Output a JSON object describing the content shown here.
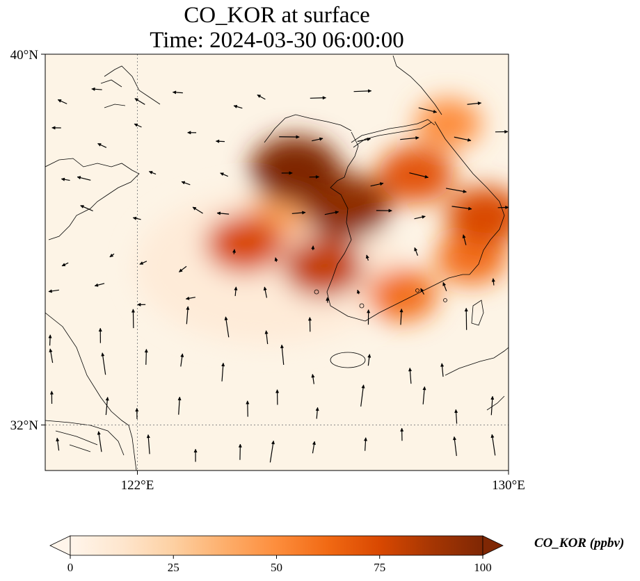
{
  "title_line1": "CO_KOR at surface",
  "title_line2": "Time: 2024-03-30 06:00:00",
  "axes": {
    "lat_labels": [
      "40°N",
      "32°N"
    ],
    "lon_labels": [
      "122°E",
      "130°E"
    ]
  },
  "colorbar": {
    "label": "CO_KOR (ppbv)",
    "ticks": [
      "0",
      "25",
      "50",
      "75",
      "100"
    ],
    "min": 0,
    "max": 100,
    "colors": [
      "#fff5eb",
      "#fee6ce",
      "#fdd0a2",
      "#fdae6b",
      "#fd8d3c",
      "#f16913",
      "#d94801",
      "#a63603",
      "#7f2704"
    ]
  },
  "map_extent": {
    "lon": [
      120,
      130
    ],
    "lat": [
      31,
      40
    ]
  },
  "land_color": "#fdf4e6",
  "plumes": [
    {
      "lon": 125.4,
      "lat": 37.5,
      "value": 100
    },
    {
      "lon": 126.5,
      "lat": 36.7,
      "value": 95
    },
    {
      "lon": 128.0,
      "lat": 37.4,
      "value": 70
    },
    {
      "lon": 129.5,
      "lat": 36.5,
      "value": 75
    },
    {
      "lon": 129.2,
      "lat": 35.6,
      "value": 60
    },
    {
      "lon": 126.0,
      "lat": 35.4,
      "value": 80
    },
    {
      "lon": 124.3,
      "lat": 35.9,
      "value": 75
    },
    {
      "lon": 127.7,
      "lat": 34.8,
      "value": 60
    },
    {
      "lon": 128.7,
      "lat": 38.5,
      "value": 50
    },
    {
      "lon": 125.0,
      "lat": 36.5,
      "value": 40
    }
  ]
}
